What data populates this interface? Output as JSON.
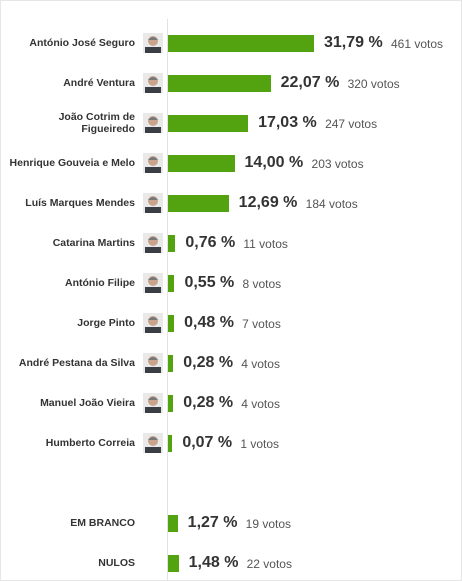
{
  "chart_data": [
    {
      "type": "bar",
      "categories": [
        "António José Seguro",
        "André Ventura",
        "João Cotrim de Figueiredo",
        "Henrique Gouveia e Melo",
        "Luís Marques Mendes",
        "Catarina Martins",
        "António Filipe",
        "Jorge Pinto",
        "André Pestana da Silva",
        "Manuel João Vieira",
        "Humberto Correia"
      ],
      "values": [
        31.79,
        22.07,
        17.03,
        14.0,
        12.69,
        0.76,
        0.55,
        0.48,
        0.28,
        0.28,
        0.07
      ],
      "value_labels": [
        "31,79 %",
        "22,07 %",
        "17,03 %",
        "14,00 %",
        "12,69 %",
        "0,76 %",
        "0,55 %",
        "0,48 %",
        "0,28 %",
        "0,28 %",
        "0,07 %"
      ],
      "vote_labels": [
        "461 votos",
        "320 votos",
        "247 votos",
        "203 votos",
        "184 votos",
        "11 votos",
        "8 votos",
        "7 votos",
        "4 votos",
        "4 votos",
        "1 votos"
      ],
      "color": "#52a30f"
    },
    {
      "type": "bar",
      "categories": [
        "EM BRANCO",
        "NULOS"
      ],
      "values": [
        1.27,
        1.48
      ],
      "value_labels": [
        "1,27 %",
        "1,48 %"
      ],
      "vote_labels": [
        "19 votos",
        "22 votos"
      ],
      "color": "#52a30f"
    }
  ]
}
